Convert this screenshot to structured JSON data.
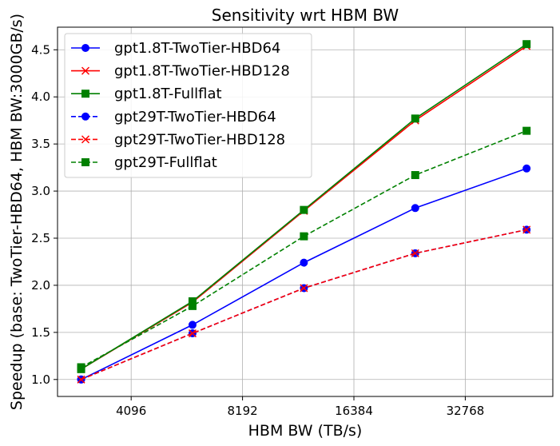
{
  "chart_data": {
    "type": "line",
    "title": "Sensitivity wrt HBM BW",
    "xlabel": "HBM BW (TB/s)",
    "ylabel": "Speedup (base: TwoTier-HBD64, HBM BW:3000GB/s)",
    "x_scale": "log2",
    "xlim": [
      2590,
      56500
    ],
    "ylim": [
      0.82,
      4.74
    ],
    "x_ticks": [
      4096,
      8192,
      16384,
      32768
    ],
    "x_tick_labels": [
      "4096",
      "8192",
      "16384",
      "32768"
    ],
    "y_ticks": [
      1.0,
      1.5,
      2.0,
      2.5,
      3.0,
      3.5,
      4.0,
      4.5
    ],
    "y_tick_labels": [
      "1.0",
      "1.5",
      "2.0",
      "2.5",
      "3.0",
      "3.5",
      "4.0",
      "4.5"
    ],
    "grid": true,
    "legend_position": "top-left",
    "x": [
      3000,
      6000,
      12000,
      24000,
      48000
    ],
    "series": [
      {
        "name": "gpt1.8T-TwoTier-HBD64",
        "color": "#0000ff",
        "style": "solid",
        "marker": "circle",
        "values": [
          1.0,
          1.58,
          2.24,
          2.82,
          3.24
        ]
      },
      {
        "name": "gpt1.8T-TwoTier-HBD128",
        "color": "#ff0000",
        "style": "solid",
        "marker": "x",
        "values": [
          1.11,
          1.82,
          2.79,
          3.75,
          4.54
        ]
      },
      {
        "name": "gpt1.8T-Fullflat",
        "color": "#008000",
        "style": "solid",
        "marker": "square",
        "values": [
          1.11,
          1.83,
          2.8,
          3.77,
          4.56
        ]
      },
      {
        "name": "gpt29T-TwoTier-HBD64",
        "color": "#0000ff",
        "style": "dashed",
        "marker": "circle",
        "values": [
          1.0,
          1.49,
          1.97,
          2.34,
          2.59
        ]
      },
      {
        "name": "gpt29T-TwoTier-HBD128",
        "color": "#ff0000",
        "style": "dashed",
        "marker": "x",
        "values": [
          1.0,
          1.49,
          1.97,
          2.34,
          2.59
        ]
      },
      {
        "name": "gpt29T-Fullflat",
        "color": "#008000",
        "style": "dashed",
        "marker": "square",
        "values": [
          1.13,
          1.78,
          2.52,
          3.17,
          3.64
        ]
      }
    ]
  }
}
